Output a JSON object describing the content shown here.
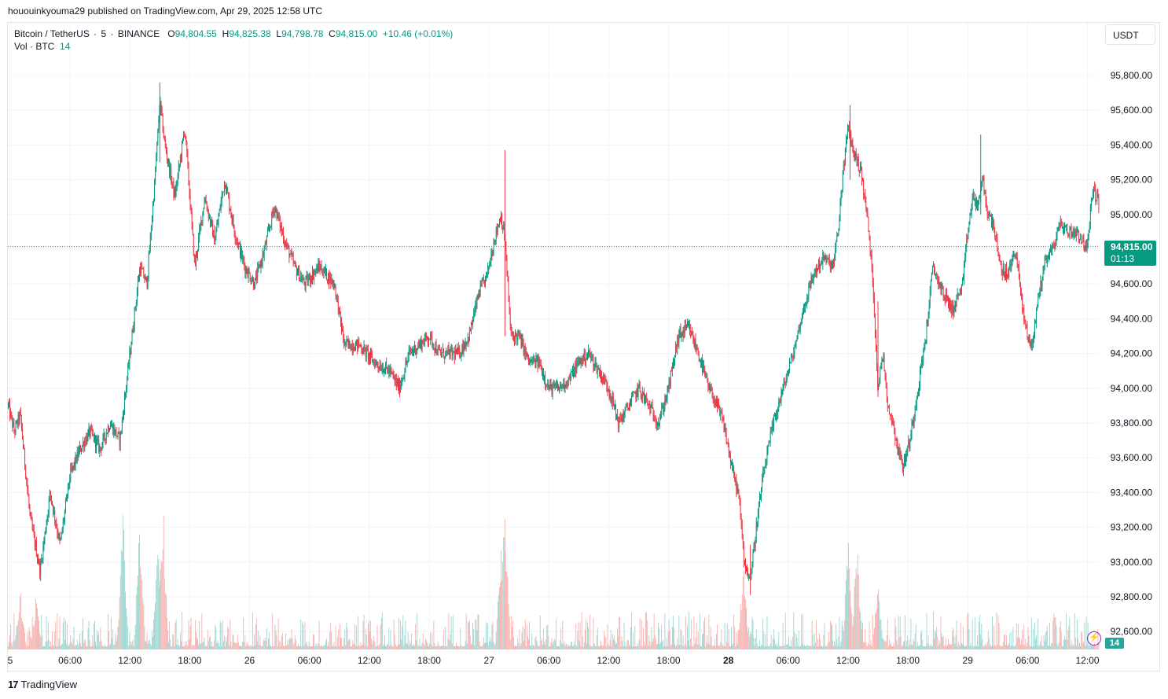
{
  "publish_line": "hououinkyouma29 published on TradingView.com, Apr 29, 2025 12:58 UTC",
  "legend": {
    "symbol": "Bitcoin / TetherUS",
    "interval": "5",
    "exchange": "BINANCE",
    "o_label": "O",
    "o_value": "94,804.55",
    "h_label": "H",
    "h_value": "94,825.38",
    "l_label": "L",
    "l_value": "94,798.78",
    "c_label": "C",
    "c_value": "94,815.00",
    "change": "+10.46 (+0.01%)"
  },
  "vol_legend": {
    "label": "Vol · BTC",
    "value": "14"
  },
  "currency_button": "USDT",
  "current_price": {
    "price": "94,815.00",
    "countdown": "01:13"
  },
  "volume_tag": "14",
  "brand": {
    "logo": "17",
    "name": "TradingView"
  },
  "colors": {
    "up": "#089981",
    "down": "#f23645",
    "up_volume": "#92d2cc",
    "down_volume": "#f7a9a7",
    "grid": "#f0f3fa",
    "accent": "#9c27b0"
  },
  "chart_data": {
    "type": "candlestick",
    "title": "Bitcoin / TetherUS · 5 · BINANCE",
    "ylim": [
      92500,
      95920
    ],
    "y_ticks": [
      "95,800.00",
      "95,600.00",
      "95,400.00",
      "95,200.00",
      "95,000.00",
      "94,800.00",
      "94,600.00",
      "94,400.00",
      "94,200.00",
      "94,000.00",
      "93,800.00",
      "93,600.00",
      "93,400.00",
      "93,200.00",
      "93,000.00",
      "92,800.00",
      "92,600.00"
    ],
    "x_ticks": [
      {
        "t": 0,
        "label": "5"
      },
      {
        "t": 6,
        "label": "06:00"
      },
      {
        "t": 12,
        "label": "12:00"
      },
      {
        "t": 18,
        "label": "18:00"
      },
      {
        "t": 24,
        "label": "26"
      },
      {
        "t": 30,
        "label": "06:00"
      },
      {
        "t": 36,
        "label": "12:00"
      },
      {
        "t": 42,
        "label": "18:00"
      },
      {
        "t": 48,
        "label": "27"
      },
      {
        "t": 54,
        "label": "06:00"
      },
      {
        "t": 60,
        "label": "12:00"
      },
      {
        "t": 66,
        "label": "18:00"
      },
      {
        "t": 72,
        "label": "28"
      },
      {
        "t": 78,
        "label": "06:00"
      },
      {
        "t": 84,
        "label": "12:00"
      },
      {
        "t": 90,
        "label": "18:00"
      },
      {
        "t": 96,
        "label": "29"
      },
      {
        "t": 102,
        "label": "06:00"
      },
      {
        "t": 108,
        "label": "12:00"
      }
    ],
    "bold_x_labels": [
      "28"
    ],
    "price_path": [
      [
        -0.2,
        93900
      ],
      [
        0.4,
        93750
      ],
      [
        1.0,
        93850
      ],
      [
        2.0,
        93250
      ],
      [
        3.0,
        92950
      ],
      [
        4.0,
        93400
      ],
      [
        5.0,
        93100
      ],
      [
        6.0,
        93500
      ],
      [
        7.0,
        93650
      ],
      [
        8.0,
        93750
      ],
      [
        9.0,
        93650
      ],
      [
        10.0,
        93800
      ],
      [
        11.0,
        93700
      ],
      [
        12.0,
        94200
      ],
      [
        13.0,
        94700
      ],
      [
        13.7,
        94600
      ],
      [
        14.5,
        95200
      ],
      [
        15.0,
        95650
      ],
      [
        15.5,
        95400
      ],
      [
        16.5,
        95100
      ],
      [
        17.5,
        95500
      ],
      [
        18.5,
        94700
      ],
      [
        19.5,
        95100
      ],
      [
        20.5,
        94850
      ],
      [
        21.5,
        95200
      ],
      [
        22.5,
        94900
      ],
      [
        23.5,
        94700
      ],
      [
        24.5,
        94600
      ],
      [
        25.5,
        94800
      ],
      [
        26.5,
        95050
      ],
      [
        27.5,
        94850
      ],
      [
        28.5,
        94700
      ],
      [
        29.5,
        94600
      ],
      [
        31.0,
        94700
      ],
      [
        32.5,
        94600
      ],
      [
        33.5,
        94250
      ],
      [
        35.0,
        94250
      ],
      [
        36.5,
        94150
      ],
      [
        38.0,
        94100
      ],
      [
        39.0,
        94000
      ],
      [
        40.0,
        94200
      ],
      [
        41.0,
        94250
      ],
      [
        42.0,
        94300
      ],
      [
        43.0,
        94200
      ],
      [
        44.0,
        94200
      ],
      [
        45.0,
        94200
      ],
      [
        46.0,
        94300
      ],
      [
        47.0,
        94550
      ],
      [
        47.8,
        94650
      ],
      [
        48.5,
        94850
      ],
      [
        49.2,
        95000
      ],
      [
        49.6,
        94850
      ],
      [
        50.2,
        94300
      ],
      [
        51.0,
        94300
      ],
      [
        52.0,
        94150
      ],
      [
        53.0,
        94150
      ],
      [
        54.0,
        94000
      ],
      [
        55.0,
        94000
      ],
      [
        56.0,
        94050
      ],
      [
        57.0,
        94150
      ],
      [
        58.0,
        94200
      ],
      [
        59.0,
        94100
      ],
      [
        60.0,
        94000
      ],
      [
        61.0,
        93800
      ],
      [
        62.0,
        93900
      ],
      [
        63.0,
        94000
      ],
      [
        64.0,
        93900
      ],
      [
        65.0,
        93800
      ],
      [
        66.0,
        94000
      ],
      [
        67.0,
        94300
      ],
      [
        68.0,
        94350
      ],
      [
        69.0,
        94200
      ],
      [
        70.0,
        94000
      ],
      [
        70.5,
        93950
      ],
      [
        71.5,
        93800
      ],
      [
        72.5,
        93500
      ],
      [
        73.0,
        93400
      ],
      [
        73.6,
        93000
      ],
      [
        74.2,
        92900
      ],
      [
        74.8,
        93200
      ],
      [
        75.5,
        93500
      ],
      [
        76.5,
        93800
      ],
      [
        77.5,
        94000
      ],
      [
        78.5,
        94200
      ],
      [
        79.5,
        94450
      ],
      [
        80.5,
        94650
      ],
      [
        81.5,
        94750
      ],
      [
        82.5,
        94700
      ],
      [
        83.0,
        94900
      ],
      [
        83.5,
        95250
      ],
      [
        84.0,
        95500
      ],
      [
        84.6,
        95350
      ],
      [
        85.3,
        95250
      ],
      [
        86.0,
        94950
      ],
      [
        86.5,
        94600
      ],
      [
        87.0,
        94000
      ],
      [
        87.5,
        94200
      ],
      [
        88.0,
        93900
      ],
      [
        88.5,
        93800
      ],
      [
        89.0,
        93650
      ],
      [
        89.5,
        93550
      ],
      [
        90.2,
        93700
      ],
      [
        91.0,
        94000
      ],
      [
        91.8,
        94300
      ],
      [
        92.5,
        94700
      ],
      [
        93.5,
        94550
      ],
      [
        94.5,
        94450
      ],
      [
        95.5,
        94600
      ],
      [
        96.0,
        94900
      ],
      [
        96.5,
        95100
      ],
      [
        97.0,
        95050
      ],
      [
        97.5,
        95200
      ],
      [
        98.0,
        95000
      ],
      [
        98.6,
        94950
      ],
      [
        99.2,
        94700
      ],
      [
        100.0,
        94650
      ],
      [
        100.8,
        94800
      ],
      [
        101.5,
        94450
      ],
      [
        102.0,
        94300
      ],
      [
        102.5,
        94250
      ],
      [
        103.0,
        94500
      ],
      [
        103.8,
        94750
      ],
      [
        104.5,
        94800
      ],
      [
        105.3,
        94950
      ],
      [
        106.0,
        94900
      ],
      [
        107.0,
        94900
      ],
      [
        108.0,
        94800
      ],
      [
        108.5,
        95150
      ],
      [
        109.0,
        95100
      ],
      [
        109.5,
        94900
      ],
      [
        110.0,
        94815
      ]
    ],
    "special_candles": [
      {
        "t": 15.0,
        "o": 95500,
        "h": 95760,
        "l": 95300,
        "c": 95600
      },
      {
        "t": 49.6,
        "o": 94950,
        "h": 95370,
        "l": 94300,
        "c": 94400
      },
      {
        "t": 74.2,
        "o": 92950,
        "h": 93100,
        "l": 92810,
        "c": 92900
      },
      {
        "t": 84.2,
        "o": 95350,
        "h": 95630,
        "l": 95200,
        "c": 95500
      },
      {
        "t": 87.0,
        "o": 94300,
        "h": 94500,
        "l": 93950,
        "c": 94050
      },
      {
        "t": 97.3,
        "o": 95100,
        "h": 95460,
        "l": 95000,
        "c": 95200
      },
      {
        "t": 109.2,
        "o": 95100,
        "h": 95280,
        "l": 95000,
        "c": 95150
      }
    ],
    "volume_spikes": [
      {
        "t": 11.3,
        "v": 0.9
      },
      {
        "t": 13.0,
        "v": 0.95
      },
      {
        "t": 14.8,
        "v": 0.75
      },
      {
        "t": 15.3,
        "v": 1.0
      },
      {
        "t": 49.2,
        "v": 0.7
      },
      {
        "t": 49.6,
        "v": 0.95
      },
      {
        "t": 73.5,
        "v": 0.55
      },
      {
        "t": 84.0,
        "v": 0.75
      },
      {
        "t": 84.9,
        "v": 0.72
      },
      {
        "t": 87.0,
        "v": 0.45
      },
      {
        "t": 1.0,
        "v": 0.4
      },
      {
        "t": 2.6,
        "v": 0.35
      }
    ],
    "current_price": 94815,
    "legend_placement": "top-left"
  }
}
